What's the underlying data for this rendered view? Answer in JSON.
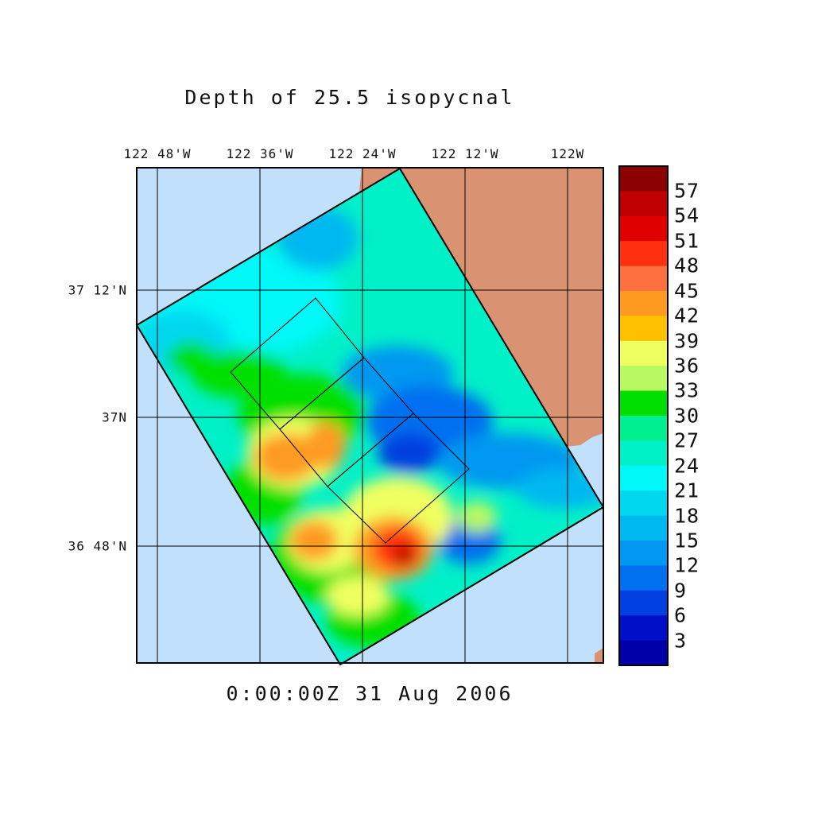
{
  "title": "Depth of 25.5 isopycnal",
  "timestamp": "0:00:00Z  31 Aug 2006",
  "longitude_labels": [
    "122 48'W",
    "122 36'W",
    "122 24'W",
    "122 12'W",
    "122W"
  ],
  "latitude_labels": [
    "37 12'N",
    "37N",
    "36 48'N"
  ],
  "colorbar": {
    "labels": [
      "57",
      "54",
      "51",
      "48",
      "45",
      "42",
      "39",
      "36",
      "33",
      "30",
      "27",
      "24",
      "21",
      "18",
      "15",
      "12",
      "9",
      "6",
      "3"
    ],
    "colors_top_to_bottom": [
      "#8b0000",
      "#c00000",
      "#e00000",
      "#ff3010",
      "#ff7040",
      "#ff9a20",
      "#ffc000",
      "#f0ff60",
      "#b8f860",
      "#00e000",
      "#00f090",
      "#00f0c8",
      "#00f8f8",
      "#00d8f0",
      "#00b8f0",
      "#0098f0",
      "#0070f0",
      "#0040e0",
      "#0010c8"
    ]
  },
  "colors": {
    "ocean": "#c0e0fc",
    "land": "#d99372"
  },
  "chart_data": {
    "type": "heatmap",
    "title": "Depth of 25.5 isopycnal",
    "colorbar_range": [
      0,
      60
    ],
    "colorbar_ticks": [
      3,
      6,
      9,
      12,
      15,
      18,
      21,
      24,
      27,
      30,
      33,
      36,
      39,
      42,
      45,
      48,
      51,
      54,
      57
    ],
    "longitude_ticks": [
      "122 48'W",
      "122 36'W",
      "122 24'W",
      "122 12'W",
      "122W"
    ],
    "latitude_ticks": [
      "37 12'N",
      "37N",
      "36 48'N"
    ],
    "features": [
      {
        "region": "offshore southwest",
        "approx_value": 40
      },
      {
        "region": "south center",
        "approx_value": 54
      },
      {
        "region": "nearshore bay",
        "approx_value": 8
      },
      {
        "region": "northwest open ocean",
        "approx_value": 22
      }
    ]
  }
}
